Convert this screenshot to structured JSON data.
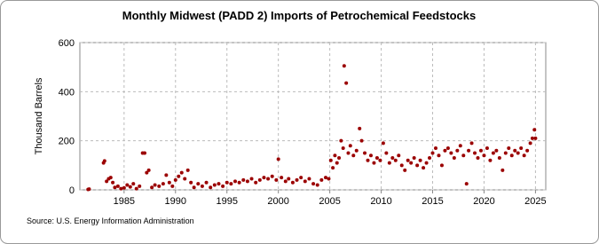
{
  "chart_data": {
    "type": "scatter",
    "title": "Monthly Midwest (PADD 2) Imports of Petrochemical Feedstocks",
    "y_label": "Thousand Barrels",
    "source": "Source: U.S. Energy Information Administration",
    "color": "#9b0000",
    "grid": true,
    "xlim": [
      1980.7,
      2026
    ],
    "xticks": [
      1985,
      1990,
      1995,
      2000,
      2005,
      2010,
      2015,
      2020,
      2025
    ],
    "ylim": [
      0,
      600
    ],
    "yticks": [
      0,
      200,
      400,
      600
    ],
    "x": [
      1981.5,
      1981.6,
      1983.0,
      1983.1,
      1983.3,
      1983.5,
      1983.7,
      1983.9,
      1984.1,
      1984.4,
      1984.7,
      1985.0,
      1985.3,
      1985.6,
      1985.9,
      1986.2,
      1986.5,
      1986.8,
      1987.0,
      1987.2,
      1987.4,
      1987.7,
      1988.0,
      1988.4,
      1988.8,
      1989.1,
      1989.4,
      1989.7,
      1990.0,
      1990.3,
      1990.6,
      1990.9,
      1991.2,
      1991.5,
      1991.8,
      1992.2,
      1992.6,
      1993.0,
      1993.4,
      1993.8,
      1994.2,
      1994.6,
      1995.0,
      1995.4,
      1995.8,
      1996.2,
      1996.6,
      1997.0,
      1997.4,
      1997.8,
      1998.2,
      1998.6,
      1999.0,
      1999.4,
      1999.8,
      2000.0,
      2000.3,
      2000.7,
      2001.0,
      2001.4,
      2001.8,
      2002.2,
      2002.6,
      2003.0,
      2003.4,
      2003.8,
      2004.2,
      2004.6,
      2004.9,
      2005.1,
      2005.3,
      2005.5,
      2005.7,
      2005.9,
      2006.1,
      2006.3,
      2006.4,
      2006.6,
      2006.8,
      2007.0,
      2007.3,
      2007.6,
      2007.9,
      2008.1,
      2008.4,
      2008.7,
      2009.0,
      2009.3,
      2009.6,
      2009.9,
      2010.2,
      2010.5,
      2010.8,
      2011.1,
      2011.4,
      2011.7,
      2012.0,
      2012.3,
      2012.6,
      2012.9,
      2013.2,
      2013.5,
      2013.8,
      2014.1,
      2014.4,
      2014.7,
      2015.0,
      2015.3,
      2015.6,
      2015.9,
      2016.2,
      2016.5,
      2016.8,
      2017.1,
      2017.4,
      2017.7,
      2018.0,
      2018.3,
      2018.5,
      2018.8,
      2019.1,
      2019.4,
      2019.7,
      2020.0,
      2020.3,
      2020.6,
      2020.9,
      2021.2,
      2021.5,
      2021.8,
      2022.1,
      2022.4,
      2022.7,
      2023.0,
      2023.3,
      2023.6,
      2023.9,
      2024.2,
      2024.5,
      2024.7,
      2024.9,
      2025.0
    ],
    "values": [
      2,
      3,
      110,
      118,
      35,
      45,
      50,
      30,
      10,
      15,
      5,
      8,
      20,
      12,
      25,
      5,
      15,
      150,
      150,
      70,
      80,
      10,
      20,
      15,
      25,
      60,
      30,
      15,
      40,
      55,
      70,
      45,
      80,
      30,
      10,
      25,
      15,
      30,
      10,
      20,
      25,
      15,
      30,
      25,
      35,
      30,
      40,
      35,
      45,
      30,
      40,
      50,
      45,
      55,
      40,
      125,
      50,
      35,
      45,
      30,
      40,
      50,
      35,
      45,
      25,
      20,
      40,
      50,
      45,
      120,
      90,
      140,
      110,
      130,
      200,
      170,
      505,
      435,
      150,
      180,
      140,
      160,
      250,
      200,
      150,
      120,
      140,
      110,
      130,
      120,
      190,
      150,
      110,
      130,
      120,
      140,
      100,
      80,
      120,
      110,
      130,
      100,
      120,
      90,
      110,
      130,
      150,
      170,
      140,
      100,
      160,
      170,
      150,
      130,
      160,
      180,
      140,
      25,
      160,
      190,
      150,
      130,
      160,
      140,
      170,
      120,
      150,
      160,
      130,
      80,
      150,
      170,
      140,
      160,
      150,
      170,
      140,
      160,
      190,
      210,
      245,
      210
    ]
  }
}
